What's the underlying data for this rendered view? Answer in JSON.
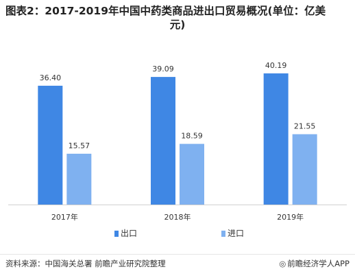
{
  "title": {
    "line1": "图表2：2017-2019年中国中药类商品进出口贸易概况(单位：亿美",
    "line2": "元)"
  },
  "chart_data": {
    "type": "bar",
    "categories": [
      "2017年",
      "2018年",
      "2019年"
    ],
    "series": [
      {
        "name": "出口",
        "values": [
          36.4,
          39.09,
          40.19
        ],
        "color": "#3f87e4"
      },
      {
        "name": "进口",
        "values": [
          15.57,
          18.59,
          21.55
        ],
        "color": "#7fb1f0"
      }
    ],
    "ylim": [
      0,
      45
    ],
    "grid": false,
    "legend": "bottom-center"
  },
  "footer": {
    "source": "资料来源：中国海关总署 前瞻产业研究院整理",
    "brand": "前瞻经济学人APP",
    "brand_icon": "eye-logo-icon"
  }
}
